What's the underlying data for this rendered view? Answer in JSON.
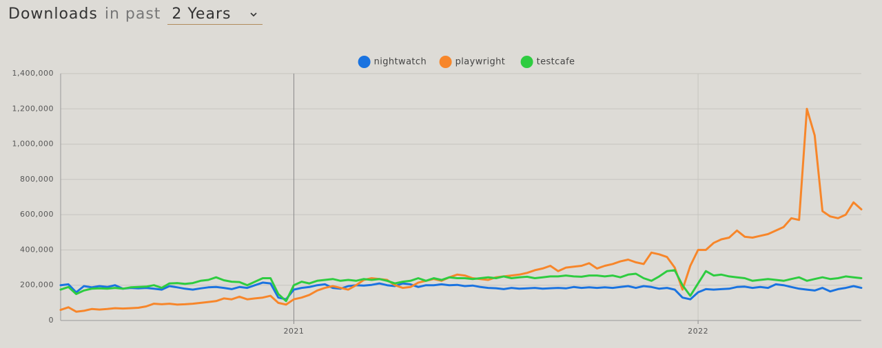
{
  "header": {
    "title": "Downloads",
    "connector": "in past",
    "period": "2 Years"
  },
  "chart_data": {
    "type": "line",
    "grid": true,
    "legend": "top",
    "categories": [
      null,
      null,
      null,
      null,
      null,
      null,
      null,
      null,
      null,
      null,
      null,
      null,
      null,
      null,
      null,
      null,
      null,
      null,
      null,
      null,
      null,
      null,
      null,
      null,
      null,
      null,
      null,
      null,
      null,
      null,
      "2021",
      null,
      null,
      null,
      null,
      null,
      null,
      null,
      null,
      null,
      null,
      null,
      null,
      null,
      null,
      null,
      null,
      null,
      null,
      null,
      null,
      null,
      null,
      null,
      null,
      null,
      null,
      null,
      null,
      null,
      null,
      null,
      null,
      null,
      null,
      null,
      null,
      null,
      null,
      null,
      null,
      null,
      null,
      null,
      null,
      null,
      null,
      null,
      null,
      null,
      null,
      null,
      "2022",
      null,
      null,
      null,
      null,
      null,
      null,
      null,
      null,
      null,
      null,
      null,
      null,
      null,
      null,
      null,
      null,
      null,
      null,
      null,
      null,
      null
    ],
    "ylim": [
      0,
      1400000
    ],
    "yticks": [
      0,
      {
        "value": 200000,
        "label": "200,000"
      },
      {
        "value": 400000,
        "label": "400,000"
      },
      {
        "value": 600000,
        "label": "600,000"
      },
      {
        "value": 800000,
        "label": "800,000"
      },
      {
        "value": 1000000,
        "label": "1,000,000"
      },
      {
        "value": 1200000,
        "label": "1,200,000"
      },
      {
        "value": 1400000,
        "label": "1,400,000"
      }
    ],
    "series": [
      {
        "name": "nightwatch",
        "color": "#1a73e0",
        "values": [
          200000,
          205000,
          160000,
          195000,
          188000,
          195000,
          190000,
          200000,
          180000,
          185000,
          182000,
          185000,
          180000,
          175000,
          195000,
          188000,
          180000,
          175000,
          182000,
          188000,
          190000,
          185000,
          178000,
          190000,
          185000,
          200000,
          215000,
          210000,
          130000,
          120000,
          175000,
          185000,
          190000,
          200000,
          205000,
          185000,
          180000,
          195000,
          200000,
          198000,
          202000,
          210000,
          200000,
          195000,
          210000,
          205000,
          190000,
          200000,
          200000,
          205000,
          200000,
          202000,
          195000,
          198000,
          190000,
          185000,
          183000,
          178000,
          185000,
          180000,
          182000,
          185000,
          180000,
          183000,
          185000,
          182000,
          190000,
          185000,
          188000,
          185000,
          188000,
          185000,
          190000,
          195000,
          185000,
          195000,
          190000,
          180000,
          185000,
          175000,
          130000,
          120000,
          160000,
          178000,
          175000,
          178000,
          180000,
          190000,
          192000,
          185000,
          190000,
          185000,
          205000,
          200000,
          190000,
          180000,
          175000,
          170000,
          185000,
          165000,
          178000,
          185000,
          195000,
          185000
        ]
      },
      {
        "name": "playwright",
        "color": "#f7862a",
        "values": [
          60000,
          75000,
          50000,
          55000,
          65000,
          62000,
          65000,
          70000,
          68000,
          70000,
          72000,
          80000,
          95000,
          92000,
          95000,
          90000,
          92000,
          95000,
          100000,
          105000,
          110000,
          125000,
          120000,
          135000,
          120000,
          125000,
          130000,
          140000,
          100000,
          90000,
          120000,
          130000,
          145000,
          170000,
          185000,
          195000,
          185000,
          175000,
          200000,
          230000,
          240000,
          235000,
          230000,
          200000,
          185000,
          190000,
          215000,
          225000,
          235000,
          225000,
          245000,
          260000,
          255000,
          240000,
          235000,
          230000,
          245000,
          250000,
          255000,
          260000,
          270000,
          285000,
          295000,
          310000,
          280000,
          300000,
          305000,
          310000,
          325000,
          295000,
          310000,
          320000,
          335000,
          345000,
          330000,
          320000,
          385000,
          375000,
          360000,
          300000,
          175000,
          310000,
          400000,
          400000,
          440000,
          460000,
          470000,
          510000,
          475000,
          470000,
          480000,
          490000,
          510000,
          530000,
          580000,
          570000,
          1200000,
          1050000,
          620000,
          590000,
          580000,
          600000,
          670000,
          630000
        ]
      },
      {
        "name": "testcafe",
        "color": "#2ecc40",
        "values": [
          175000,
          190000,
          150000,
          170000,
          180000,
          182000,
          180000,
          185000,
          180000,
          188000,
          190000,
          192000,
          200000,
          185000,
          210000,
          212000,
          208000,
          212000,
          225000,
          230000,
          245000,
          228000,
          220000,
          218000,
          200000,
          220000,
          240000,
          240000,
          150000,
          110000,
          200000,
          220000,
          210000,
          225000,
          230000,
          235000,
          225000,
          230000,
          225000,
          235000,
          230000,
          235000,
          225000,
          210000,
          220000,
          225000,
          240000,
          225000,
          240000,
          230000,
          245000,
          240000,
          240000,
          235000,
          240000,
          245000,
          240000,
          250000,
          240000,
          245000,
          248000,
          240000,
          245000,
          250000,
          250000,
          255000,
          250000,
          248000,
          255000,
          255000,
          250000,
          255000,
          245000,
          260000,
          265000,
          240000,
          225000,
          250000,
          280000,
          285000,
          200000,
          140000,
          210000,
          280000,
          255000,
          260000,
          250000,
          245000,
          240000,
          225000,
          230000,
          235000,
          230000,
          225000,
          235000,
          245000,
          225000,
          235000,
          245000,
          235000,
          240000,
          250000,
          245000,
          240000
        ]
      }
    ]
  }
}
